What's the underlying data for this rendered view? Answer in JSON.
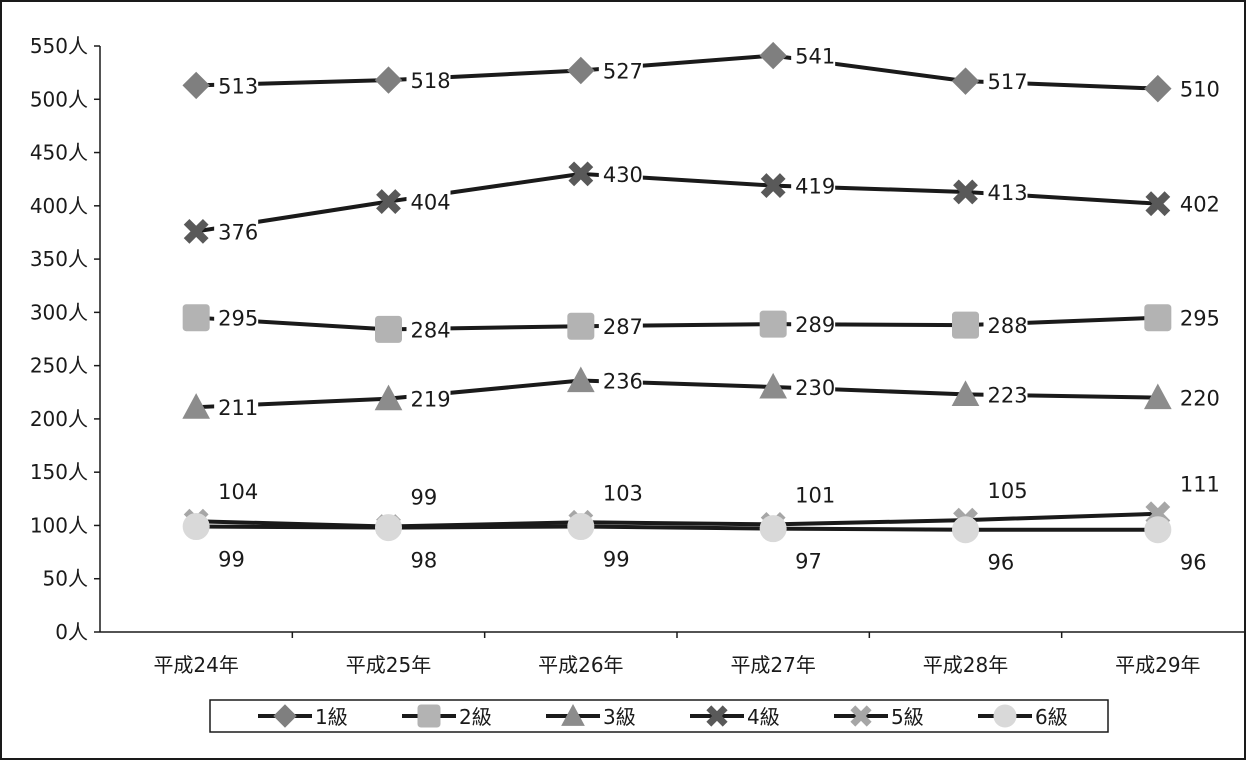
{
  "chart_data": {
    "type": "line",
    "title": "",
    "xlabel": "",
    "ylabel": "",
    "categories": [
      "平成24年",
      "平成25年",
      "平成26年",
      "平成27年",
      "平成28年",
      "平成29年"
    ],
    "ylim": [
      0,
      550
    ],
    "yticks": [
      0,
      50,
      100,
      150,
      200,
      250,
      300,
      350,
      400,
      450,
      500,
      550
    ],
    "y_unit": "人",
    "grid": false,
    "legend_position": "bottom",
    "series": [
      {
        "name": "1級",
        "marker": "diamond",
        "color": "#7f7f7f",
        "values": [
          513,
          518,
          527,
          541,
          517,
          510
        ]
      },
      {
        "name": "2級",
        "marker": "square",
        "color": "#b3b3b3",
        "values": [
          295,
          284,
          287,
          289,
          288,
          295
        ]
      },
      {
        "name": "3級",
        "marker": "triangle",
        "color": "#8c8c8c",
        "values": [
          211,
          219,
          236,
          230,
          223,
          220
        ]
      },
      {
        "name": "4級",
        "marker": "x",
        "color": "#595959",
        "values": [
          376,
          404,
          430,
          419,
          413,
          402
        ]
      },
      {
        "name": "5級",
        "marker": "x",
        "color": "#a6a6a6",
        "values": [
          104,
          99,
          103,
          101,
          105,
          111
        ]
      },
      {
        "name": "6級",
        "marker": "circle",
        "color": "#d9d9d9",
        "values": [
          99,
          98,
          99,
          97,
          96,
          96
        ]
      }
    ],
    "line_color": "#1a1a1a"
  }
}
